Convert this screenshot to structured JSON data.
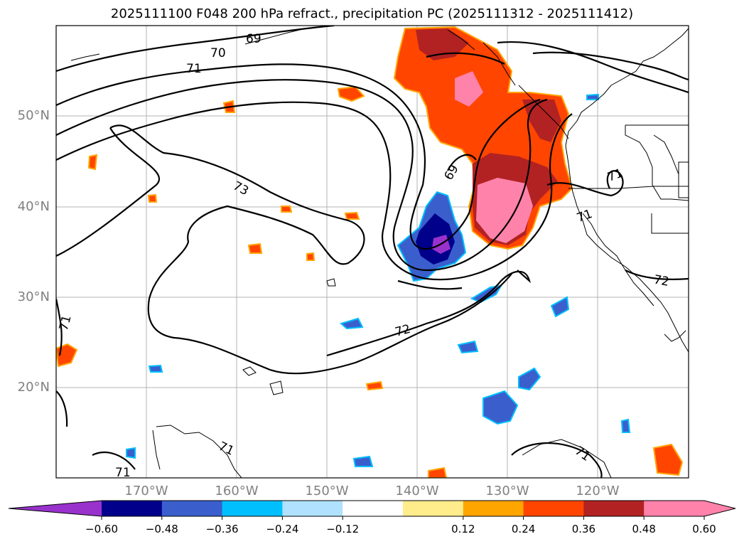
{
  "title": "2025111100 F048 200 hPa refract., precipitation PC (2025111312 - 2025111412)",
  "lat_labels": [
    "50°N",
    "40°N",
    "30°N",
    "20°N"
  ],
  "lon_labels": [
    "170°W",
    "160°W",
    "150°W",
    "140°W",
    "130°W",
    "120°W"
  ],
  "contour_labels": [
    "69",
    "70",
    "71",
    "73",
    "69",
    "71",
    "71",
    "72",
    "72",
    "71",
    "71",
    "71"
  ],
  "colorbar": {
    "ticks": [
      "−0.60",
      "−0.48",
      "−0.36",
      "−0.24",
      "−0.12",
      "0.12",
      "0.24",
      "0.36",
      "0.48",
      "0.60"
    ],
    "colors": [
      "#9932cc",
      "#00008b",
      "#3a5fcd",
      "#00bfff",
      "#b0e2ff",
      "#ffffff",
      "#ffec8b",
      "#ffa500",
      "#ff4500",
      "#b22222",
      "#ff82ab",
      "#ff82ab"
    ]
  },
  "field_colors": {
    "coast": "#000000",
    "grid": "#b3b3b3",
    "contour": "#000000"
  }
}
